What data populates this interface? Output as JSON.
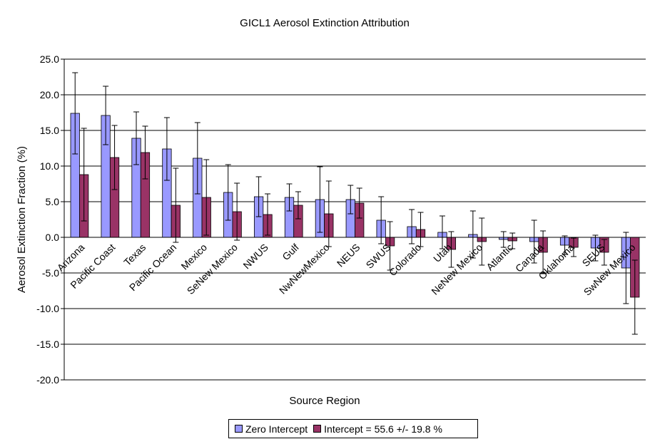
{
  "chart_data": {
    "type": "bar",
    "title": "GICL1 Aerosol Extinction Attribution",
    "xlabel": "Source Region",
    "ylabel": "Aerosol Extinction Fraction (%)",
    "ylim": [
      -20,
      25
    ],
    "yticks": [
      25.0,
      20.0,
      15.0,
      10.0,
      5.0,
      0.0,
      -5.0,
      -10.0,
      -15.0,
      -20.0
    ],
    "ytick_labels": [
      "25.0",
      "20.0",
      "15.0",
      "10.0",
      "5.0",
      "0.0",
      "-5.0",
      "-10.0",
      "-15.0",
      "-20.0"
    ],
    "grid": true,
    "legend_position": "bottom",
    "categories": [
      "Arizona",
      "Pacific Coast",
      "Texas",
      "Pacific Ocean",
      "Mexico",
      "SeNew Mexico",
      "NWUS",
      "Gulf",
      "NwNewMexico",
      "NEUS",
      "SWUS",
      "Colorado",
      "Utah",
      "NeNew Mexico",
      "Atlantic",
      "Canada",
      "Oklahoma",
      "SEUS",
      "SwNew Mexico"
    ],
    "series": [
      {
        "name": "Zero Intercept",
        "color": "#9999ff",
        "values": [
          17.4,
          17.1,
          13.9,
          12.4,
          11.1,
          6.3,
          5.7,
          5.6,
          5.3,
          5.3,
          2.4,
          1.5,
          0.7,
          0.4,
          -0.3,
          -0.6,
          -1.1,
          -1.5,
          -4.3
        ],
        "error": [
          5.7,
          4.1,
          3.7,
          4.4,
          5.0,
          3.9,
          2.8,
          1.9,
          4.6,
          2.0,
          3.3,
          2.4,
          2.3,
          3.3,
          1.1,
          3.0,
          1.3,
          1.8,
          5.0
        ]
      },
      {
        "name": "Intercept = 55.6 +/- 19.8 %",
        "color": "#993366",
        "values": [
          8.8,
          11.2,
          11.9,
          4.5,
          5.6,
          3.6,
          3.2,
          4.5,
          3.3,
          4.8,
          -1.2,
          1.1,
          -1.7,
          -0.6,
          -0.5,
          -2.1,
          -1.4,
          -2.1,
          -8.4
        ],
        "error": [
          6.5,
          4.5,
          3.7,
          5.2,
          5.3,
          4.0,
          2.9,
          1.9,
          4.6,
          2.1,
          3.4,
          2.4,
          2.5,
          3.3,
          1.1,
          3.0,
          1.3,
          1.8,
          5.2
        ]
      }
    ]
  }
}
